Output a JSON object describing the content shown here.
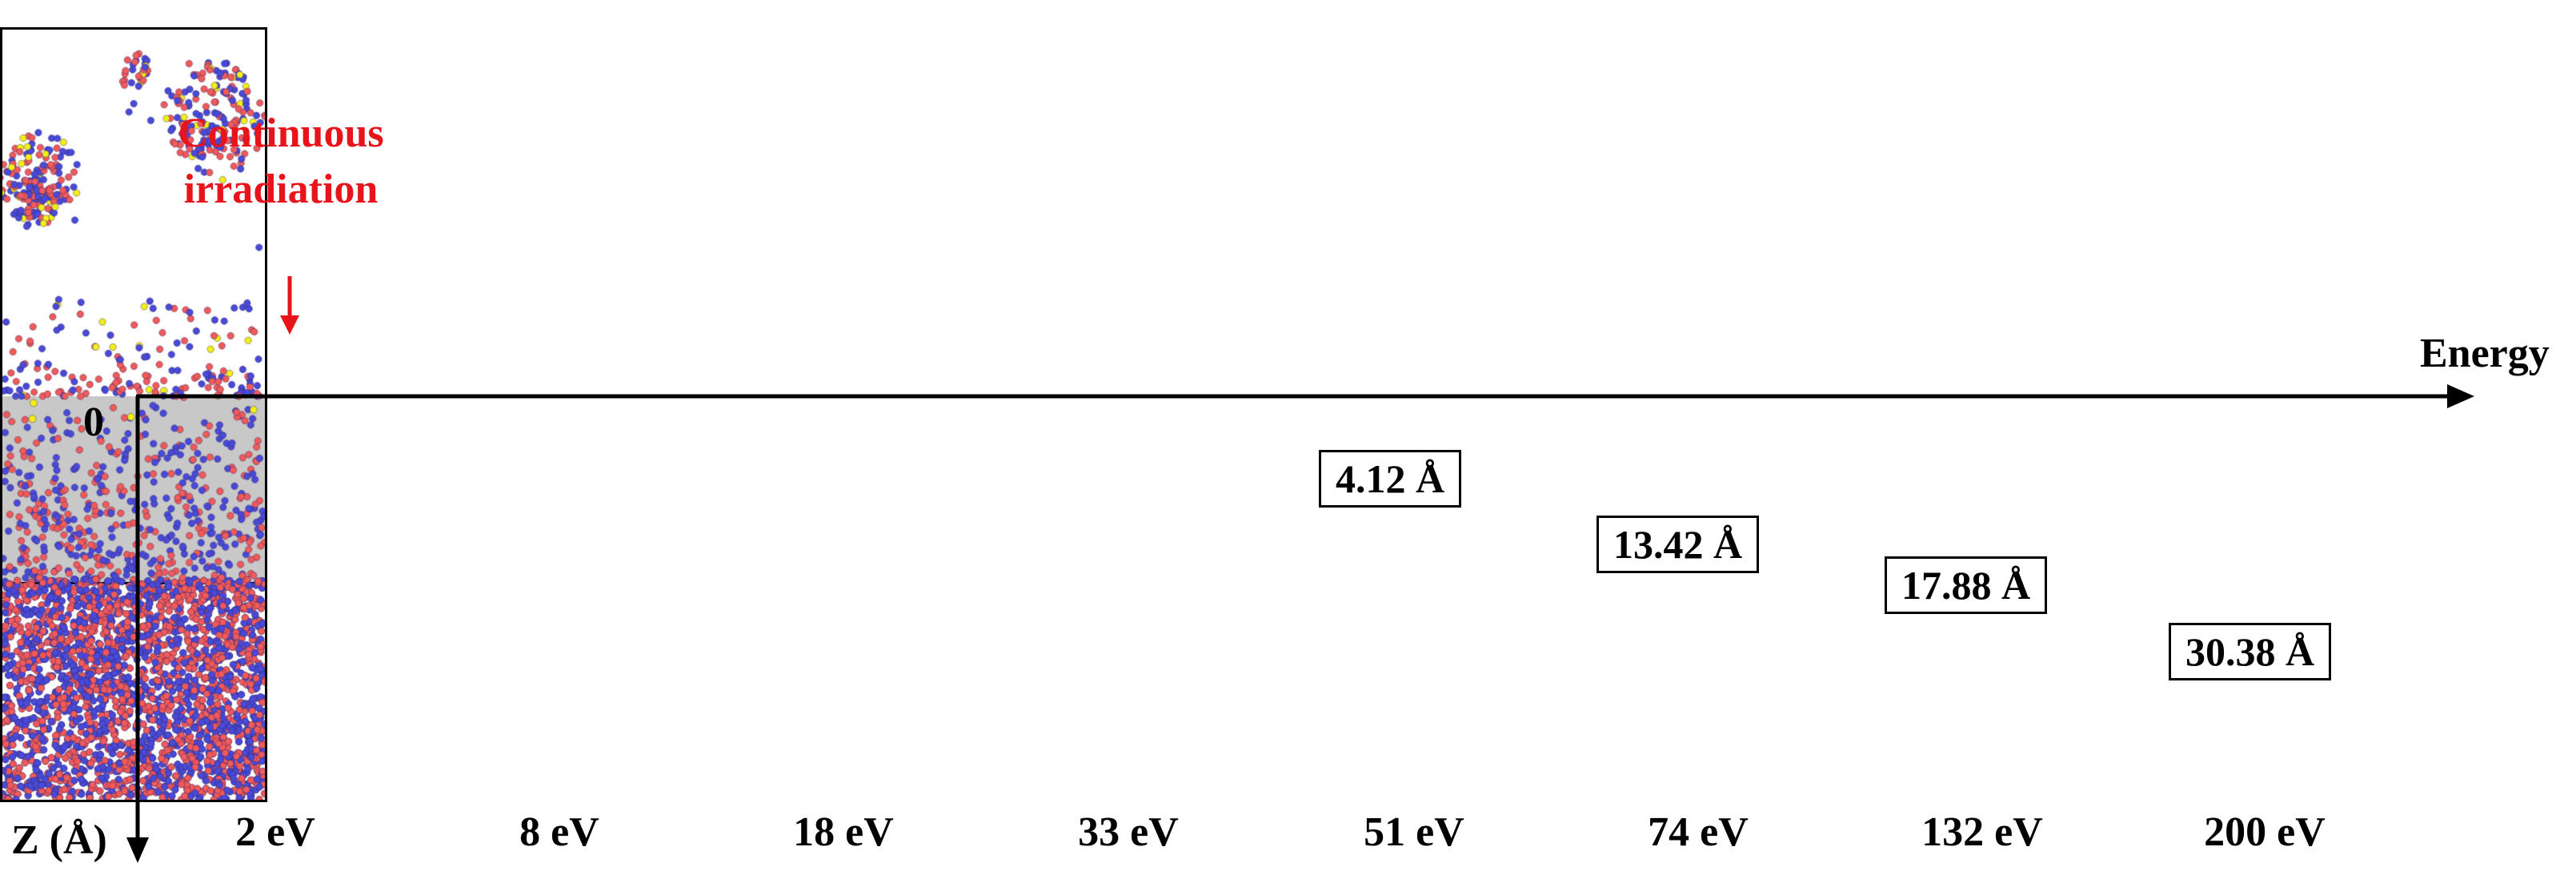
{
  "figure": {
    "annotation": "Continuous irradiation",
    "zero_label": "0",
    "energy_axis_label": "Energy",
    "z_axis_label": "Z (Å)"
  },
  "panels": [
    {
      "energy": "2 eV",
      "depth_label": null,
      "zone_color": null
    },
    {
      "energy": "8 eV",
      "depth_label": null,
      "zone_color": null
    },
    {
      "energy": "18 eV",
      "depth_label": null,
      "zone_color": null
    },
    {
      "energy": "33 eV",
      "depth_label": null,
      "zone_color": null
    },
    {
      "energy": "51 eV",
      "depth_label": "4.12 Å",
      "zone_color": "#39b5e6"
    },
    {
      "energy": "74 eV",
      "depth_label": "13.42 Å",
      "zone_color": "#f0a020"
    },
    {
      "energy": "132 eV",
      "depth_label": "17.88 Å",
      "zone_color": "#5ee08a"
    },
    {
      "energy": "200 eV",
      "depth_label": "30.38 Å",
      "zone_color": "#bdbdbd"
    }
  ],
  "colors": {
    "atom_blue": "#4a4ad8",
    "atom_red": "#f05a5a",
    "atom_yellow": "#f2ee1a",
    "annotation_red": "#e8141c",
    "axis": "#000000"
  }
}
